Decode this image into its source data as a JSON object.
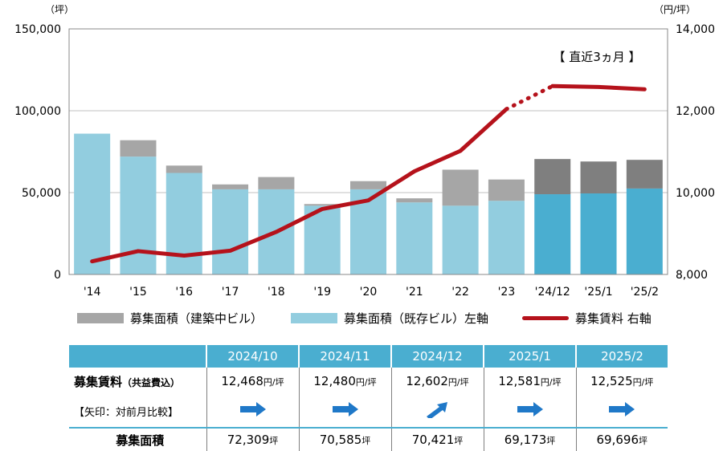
{
  "chart_data": {
    "type": "bar",
    "categories": [
      "'14",
      "'15",
      "'16",
      "'17",
      "'18",
      "'19",
      "'20",
      "'21",
      "'22",
      "'23",
      "'24/12",
      "'25/1",
      "'25/2"
    ],
    "series": [
      {
        "name": "募集面積（既存ビル）左軸",
        "axis": "left",
        "values": [
          86000,
          72000,
          62000,
          52000,
          52000,
          42000,
          52000,
          44000,
          42000,
          45000,
          49000,
          49500,
          52500
        ]
      },
      {
        "name": "募集面積（建築中ビル）",
        "axis": "left",
        "values": [
          0,
          10000,
          4500,
          3000,
          7500,
          1000,
          5000,
          2500,
          22000,
          13000,
          21500,
          19500,
          17500
        ]
      },
      {
        "name": "募集賃料 右軸",
        "axis": "right",
        "type": "line",
        "values": [
          8320,
          8570,
          8460,
          8580,
          9040,
          9600,
          9810,
          10520,
          11020,
          12040,
          12602,
          12581,
          12525
        ]
      }
    ],
    "dotted_segment": {
      "from": 9,
      "to": 10
    },
    "recent_category_count": 3,
    "y_left": {
      "unit": "（坪）",
      "ylim": [
        0,
        150000
      ],
      "ticks": [
        "0",
        "50,000",
        "100,000",
        "150,000"
      ]
    },
    "y_right": {
      "unit": "（円/坪）",
      "ylim": [
        8000,
        14000
      ],
      "ticks": [
        "8,000",
        "10,000",
        "12,000",
        "14,000"
      ]
    },
    "annotation": "【 直近3ヵ月 】",
    "colors": {
      "existing": "#92cddf",
      "existing_recent": "#4aaed0",
      "construction": "#a6a6a6",
      "construction_recent": "#7f7f7f",
      "rent": "#b5121b"
    }
  },
  "legend": {
    "construction": "募集面積（建築中ビル）",
    "existing": "募集面積（既存ビル）左軸",
    "rent": "募集賃料 右軸"
  },
  "summary": {
    "rent_label": "募集賃料",
    "rent_sublabel": "（共益費込）",
    "arrow_label": "【矢印：対前月比較】",
    "area_label": "募集面積",
    "unit_rent": "円/坪",
    "unit_area": "坪",
    "months": [
      {
        "label": "2024/10",
        "rent": "12,468",
        "arrow": "flat",
        "area": "72,309"
      },
      {
        "label": "2024/11",
        "rent": "12,480",
        "arrow": "flat",
        "area": "70,585"
      },
      {
        "label": "2024/12",
        "rent": "12,602",
        "arrow": "up",
        "area": "70,421"
      },
      {
        "label": "2025/1",
        "rent": "12,581",
        "arrow": "flat",
        "area": "69,173"
      },
      {
        "label": "2025/2",
        "rent": "12,525",
        "arrow": "flat",
        "area": "69,696"
      }
    ]
  }
}
